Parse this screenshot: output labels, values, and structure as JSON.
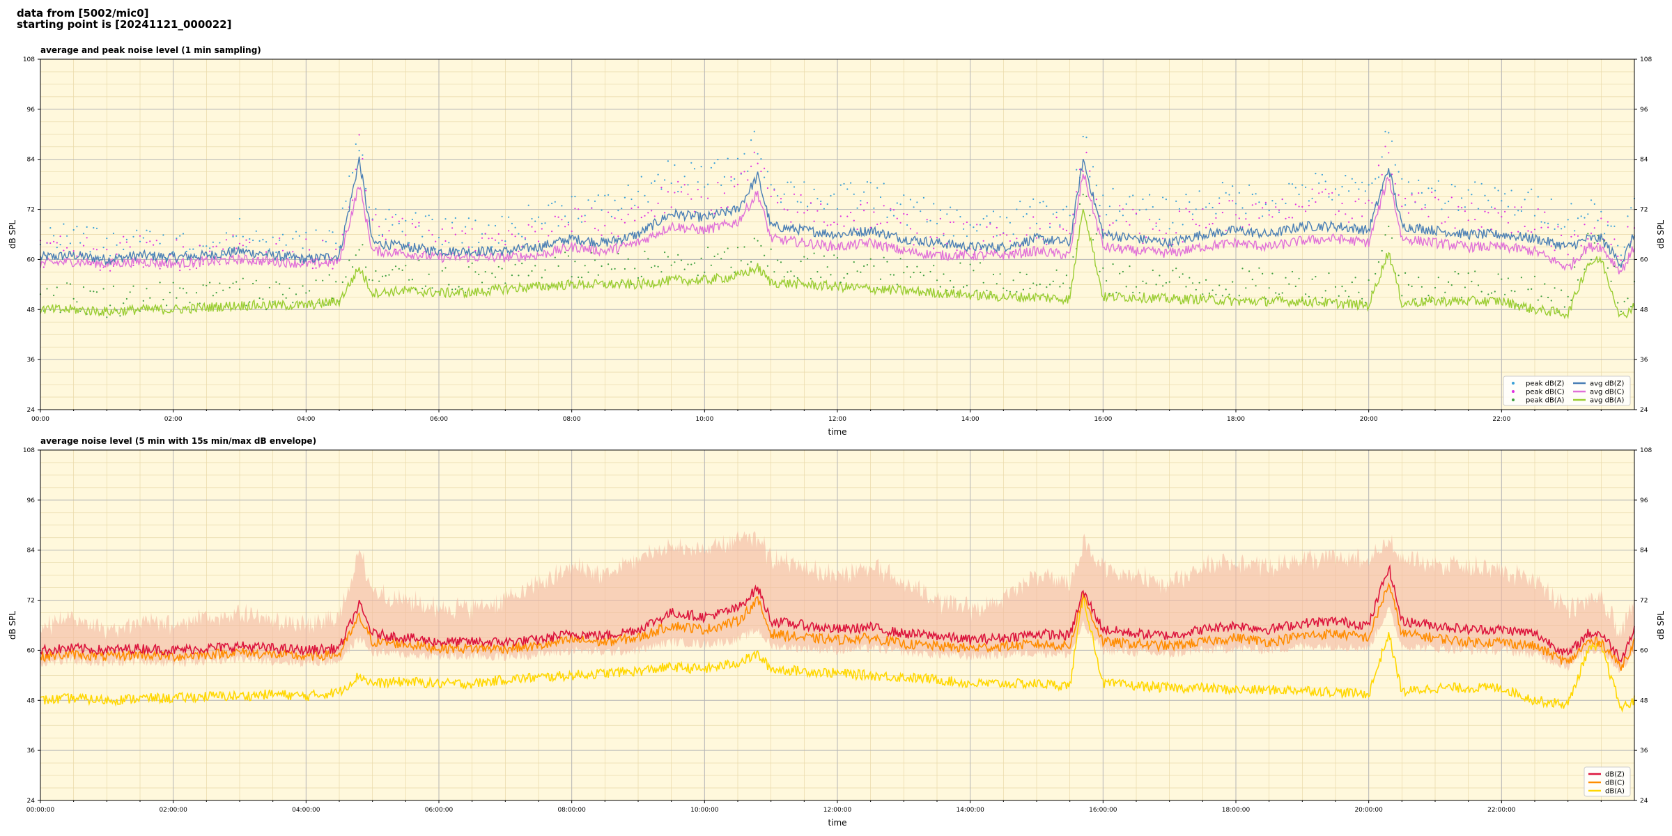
{
  "header": {
    "line1": "data from [5002/mic0]",
    "line2": "starting point is [20241121_000022]"
  },
  "colors": {
    "background": "#fff8dc",
    "peak_z": "#3aa0d8",
    "peak_c": "#e030e0",
    "peak_a": "#3f9f3f",
    "avg_z": "#4a7fb5",
    "avg_c": "#e070d8",
    "avg_a": "#9acd32",
    "dbz": "#dc143c",
    "dbc": "#ff8c00",
    "dba": "#ffd700",
    "envelope": "#f4b8a0"
  },
  "chart_data": [
    {
      "type": "line",
      "title": "average and peak noise level (1 min sampling)",
      "xlabel": "time",
      "ylabel": "dB SPL",
      "ylim": [
        24,
        108
      ],
      "xlim_hours": [
        0,
        24
      ],
      "yticks": [
        "24",
        "36",
        "48",
        "60",
        "72",
        "84",
        "96",
        "108"
      ],
      "xticks": [
        "00:00",
        "02:00",
        "04:00",
        "06:00",
        "08:00",
        "10:00",
        "12:00",
        "14:00",
        "16:00",
        "18:00",
        "20:00",
        "22:00"
      ],
      "grid": true,
      "legend_position": "bottom-right",
      "x": [
        0,
        0.5,
        1,
        1.5,
        2,
        2.5,
        3,
        3.5,
        4,
        4.5,
        4.8,
        5,
        5.5,
        6,
        6.5,
        7,
        7.5,
        8,
        8.5,
        9,
        9.5,
        10,
        10.5,
        10.8,
        11,
        11.5,
        12,
        12.5,
        13,
        13.5,
        14,
        14.5,
        15,
        15.5,
        15.7,
        16,
        16.5,
        17,
        17.5,
        18,
        18.5,
        19,
        19.5,
        20,
        20.3,
        20.5,
        21,
        21.5,
        22,
        22.5,
        23,
        23.3,
        23.5,
        23.8,
        24
      ],
      "series": [
        {
          "name": "avg dB(Z)",
          "values": [
            60.5,
            61,
            60,
            61,
            60.5,
            61,
            62,
            61,
            60,
            61,
            84,
            64,
            63,
            62,
            62,
            62,
            63,
            65,
            64,
            66,
            71,
            70,
            72,
            80,
            68,
            67,
            66,
            67,
            65,
            64,
            63,
            63,
            65,
            64,
            84,
            66,
            65,
            64,
            66,
            67,
            66,
            68,
            68,
            67,
            82,
            68,
            67,
            66,
            66,
            65,
            63,
            65,
            65,
            59,
            66
          ]
        },
        {
          "name": "avg dB(C)",
          "values": [
            59,
            59.5,
            59,
            59.5,
            59,
            59.5,
            60,
            59.5,
            59,
            59.5,
            78,
            62,
            61.5,
            60.5,
            60.5,
            60.5,
            61,
            63,
            62,
            64,
            68,
            67,
            69,
            76,
            65,
            64,
            63,
            64,
            62,
            61,
            61,
            61,
            62,
            61,
            81,
            63,
            62,
            61.5,
            63,
            64,
            63,
            64.5,
            65,
            64,
            80,
            65,
            64,
            63,
            63,
            62,
            58,
            63,
            63,
            57,
            63
          ]
        },
        {
          "name": "avg dB(A)",
          "values": [
            48,
            48,
            47.5,
            48,
            48,
            48.5,
            49,
            49,
            49,
            50,
            58,
            52,
            52.5,
            52,
            52,
            53,
            53.5,
            54,
            54,
            54,
            55,
            55,
            56,
            58,
            54.5,
            54,
            53.5,
            53,
            52.5,
            52,
            51.5,
            51,
            51,
            50.5,
            73,
            51,
            51,
            50.5,
            50.5,
            50,
            50,
            50,
            49.5,
            49,
            62,
            49.5,
            50,
            50,
            50,
            48,
            47,
            59,
            60,
            46,
            49
          ]
        },
        {
          "name": "peak dB(Z)",
          "values": [
            64,
            66,
            63,
            64,
            63,
            64,
            66,
            64,
            63,
            65,
            90,
            70,
            68,
            66,
            66,
            67,
            70,
            73,
            72,
            76,
            80,
            79,
            82,
            88,
            78,
            76,
            74,
            76,
            72,
            70,
            68,
            68,
            72,
            70,
            88,
            74,
            72,
            71,
            74,
            75,
            74,
            77,
            77,
            76,
            89,
            77,
            76,
            75,
            74,
            73,
            70,
            72,
            70,
            65,
            72
          ]
        },
        {
          "name": "peak dB(C)",
          "values": [
            62,
            63,
            61,
            62,
            61,
            62,
            63,
            62,
            61,
            62,
            86,
            67,
            66,
            64,
            64,
            64,
            66,
            69,
            68,
            71,
            75,
            74,
            77,
            84,
            73,
            72,
            70,
            71,
            68,
            66,
            65,
            65,
            68,
            66,
            85,
            70,
            68,
            67,
            70,
            71,
            70,
            73,
            73,
            72,
            86,
            73,
            72,
            71,
            70,
            69,
            64,
            68,
            67,
            62,
            68
          ]
        },
        {
          "name": "peak dB(A)",
          "values": [
            51,
            51,
            50,
            51,
            51,
            51.5,
            52,
            52,
            52,
            53,
            62,
            55,
            56,
            55.5,
            55.5,
            56,
            57,
            58,
            58,
            58,
            59,
            59,
            60,
            62,
            58.5,
            58,
            57.5,
            57,
            56.5,
            56,
            55.5,
            55,
            55,
            54.5,
            77,
            55,
            55,
            54.5,
            54.5,
            54,
            54,
            54,
            53.5,
            53,
            66,
            53.5,
            54,
            54,
            54,
            52,
            51,
            63,
            64,
            50,
            53
          ]
        }
      ]
    },
    {
      "type": "line",
      "title": "average noise level (5 min with 15s min/max dB envelope)",
      "xlabel": "time",
      "ylabel": "dB SPL",
      "ylim": [
        24,
        108
      ],
      "xlim_hours": [
        0,
        24
      ],
      "yticks": [
        "24",
        "36",
        "48",
        "60",
        "72",
        "84",
        "96",
        "108"
      ],
      "xticks": [
        "00:00:00",
        "02:00:00",
        "04:00:00",
        "06:00:00",
        "08:00:00",
        "10:00:00",
        "12:00:00",
        "14:00:00",
        "16:00:00",
        "18:00:00",
        "20:00:00",
        "22:00:00"
      ],
      "grid": true,
      "legend_position": "bottom-right",
      "x": [
        0,
        0.5,
        1,
        1.5,
        2,
        2.5,
        3,
        3.5,
        4,
        4.5,
        4.8,
        5,
        5.5,
        6,
        6.5,
        7,
        7.5,
        8,
        8.5,
        9,
        9.5,
        10,
        10.5,
        10.8,
        11,
        11.5,
        12,
        12.5,
        13,
        13.5,
        14,
        14.5,
        15,
        15.5,
        15.7,
        16,
        16.5,
        17,
        17.5,
        18,
        18.5,
        19,
        19.5,
        20,
        20.3,
        20.5,
        21,
        21.5,
        22,
        22.5,
        23,
        23.3,
        23.5,
        23.8,
        24
      ],
      "series": [
        {
          "name": "dB(Z)",
          "values": [
            60,
            60.5,
            60,
            60.5,
            60,
            60.5,
            61,
            60.5,
            60,
            60.5,
            71,
            64,
            63,
            62,
            62,
            62,
            62.5,
            64,
            63.5,
            65,
            69,
            68,
            70,
            75,
            67,
            66,
            65,
            65.5,
            64,
            63.5,
            62.5,
            63,
            64,
            63.5,
            74,
            65,
            64,
            63.5,
            65,
            66,
            65,
            66.5,
            67,
            66,
            80,
            67,
            66,
            65,
            65,
            64,
            59,
            64,
            64,
            58,
            65
          ]
        },
        {
          "name": "dB(C)",
          "values": [
            58.5,
            59,
            58.5,
            59,
            58.5,
            59,
            59.5,
            59,
            58.5,
            59,
            68,
            62,
            61.5,
            60.5,
            60.5,
            60.5,
            61,
            62.5,
            62,
            63,
            66,
            65,
            67,
            72,
            64,
            63,
            62.5,
            63,
            61.5,
            61,
            60.5,
            61,
            61.5,
            61,
            73,
            62,
            61.5,
            61,
            62,
            63,
            62,
            63.5,
            64,
            63,
            76,
            64,
            63,
            62,
            62,
            61,
            57,
            62,
            62,
            56,
            62
          ]
        },
        {
          "name": "dB(A)",
          "values": [
            48,
            48.5,
            48,
            48.5,
            48.5,
            49,
            49,
            49.5,
            49,
            50,
            54,
            52,
            52.5,
            52,
            52,
            53,
            53.5,
            54,
            54.5,
            55,
            56,
            55.5,
            57,
            59,
            55.5,
            55,
            54.5,
            54,
            53.5,
            53,
            52,
            52,
            52,
            51.5,
            73,
            52,
            51.5,
            51,
            51,
            50.5,
            50.5,
            50.5,
            50,
            49.5,
            64,
            50,
            51,
            51,
            51,
            48,
            47,
            60,
            61,
            46,
            48
          ]
        },
        {
          "name": "envelope max",
          "values": [
            64,
            66,
            63,
            65,
            64,
            66,
            67,
            65,
            64,
            66,
            82,
            72,
            70,
            68,
            68,
            70,
            74,
            78,
            76,
            80,
            83,
            82,
            84,
            85,
            80,
            78,
            76,
            78,
            74,
            70,
            68,
            70,
            76,
            74,
            84,
            78,
            76,
            74,
            78,
            79,
            78,
            80,
            80,
            79,
            84,
            80,
            79,
            78,
            77,
            75,
            68,
            70,
            70,
            62,
            70
          ]
        },
        {
          "name": "envelope min",
          "values": [
            57,
            57.5,
            57,
            57.5,
            57,
            57.5,
            58,
            57.5,
            57,
            57.5,
            63,
            59.5,
            59,
            58.5,
            58.5,
            58.5,
            59,
            60,
            59.5,
            60,
            62,
            61.5,
            62.5,
            65,
            61,
            60.5,
            60,
            60.5,
            59.5,
            59,
            58.5,
            59,
            59.5,
            59,
            66,
            60,
            59.5,
            59,
            60,
            60.5,
            60,
            61,
            61,
            60.5,
            70,
            61,
            60.5,
            60,
            60,
            59,
            56,
            60,
            60,
            55,
            60
          ]
        }
      ]
    }
  ],
  "legend_top": [
    {
      "label": "peak dB(Z)",
      "kind": "dot",
      "color": "#3aa0d8"
    },
    {
      "label": "peak dB(C)",
      "kind": "dot",
      "color": "#e030e0"
    },
    {
      "label": "peak dB(A)",
      "kind": "dot",
      "color": "#3f9f3f"
    },
    {
      "label": "avg dB(Z)",
      "kind": "line",
      "color": "#4a7fb5"
    },
    {
      "label": "avg dB(C)",
      "kind": "line",
      "color": "#e070d8"
    },
    {
      "label": "avg dB(A)",
      "kind": "line",
      "color": "#9acd32"
    }
  ],
  "legend_bottom": [
    {
      "label": "dB(Z)",
      "kind": "line",
      "color": "#dc143c"
    },
    {
      "label": "dB(C)",
      "kind": "line",
      "color": "#ff8c00"
    },
    {
      "label": "dB(A)",
      "kind": "line",
      "color": "#ffd700"
    }
  ]
}
